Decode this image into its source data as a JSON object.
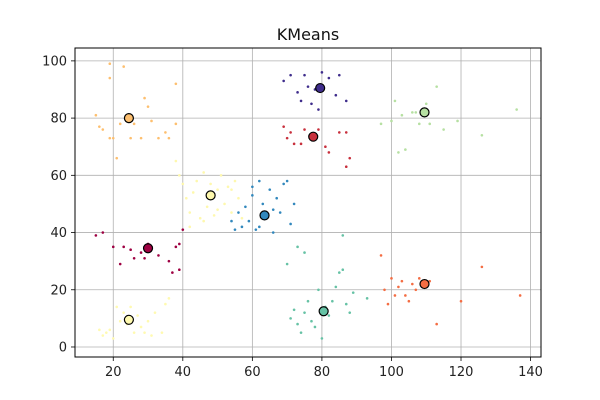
{
  "chart_data": {
    "type": "scatter",
    "title": "KMeans",
    "xlabel": "",
    "ylabel": "",
    "xlim": [
      9,
      143
    ],
    "ylim": [
      -3.5,
      104.5
    ],
    "xticks": [
      20,
      40,
      60,
      80,
      100,
      120,
      140
    ],
    "yticks": [
      0,
      20,
      40,
      60,
      80,
      100
    ],
    "grid": true,
    "legend": "none",
    "clusters": [
      {
        "color": "#fdbf6f",
        "centroid": [
          24.5,
          80
        ],
        "points": [
          [
            15,
            81
          ],
          [
            16,
            77
          ],
          [
            17,
            76
          ],
          [
            19,
            94
          ],
          [
            19,
            99
          ],
          [
            19,
            73
          ],
          [
            20,
            73
          ],
          [
            21,
            66
          ],
          [
            22,
            78
          ],
          [
            23,
            98
          ],
          [
            25,
            73
          ],
          [
            26,
            78
          ],
          [
            28,
            73
          ],
          [
            29,
            87
          ],
          [
            30,
            84
          ],
          [
            31,
            79
          ],
          [
            33,
            73
          ],
          [
            35,
            75
          ],
          [
            36,
            73
          ],
          [
            38,
            92
          ],
          [
            38,
            78
          ]
        ]
      },
      {
        "color": "#3f2d8c",
        "centroid": [
          79.5,
          90.5
        ],
        "points": [
          [
            69,
            93
          ],
          [
            71,
            95
          ],
          [
            73,
            89
          ],
          [
            74,
            86
          ],
          [
            75,
            95
          ],
          [
            76,
            91
          ],
          [
            77,
            85
          ],
          [
            78,
            90
          ],
          [
            79,
            83
          ],
          [
            80,
            96
          ],
          [
            82,
            94
          ],
          [
            84,
            88
          ],
          [
            85,
            95
          ],
          [
            87,
            86
          ]
        ]
      },
      {
        "color": "#c8303d",
        "centroid": [
          77.5,
          73.5
        ],
        "points": [
          [
            69,
            77
          ],
          [
            70,
            73
          ],
          [
            71,
            75
          ],
          [
            72,
            71
          ],
          [
            74,
            71
          ],
          [
            75,
            76
          ],
          [
            77,
            74
          ],
          [
            78,
            73
          ],
          [
            79,
            76
          ],
          [
            81,
            70
          ],
          [
            82,
            68
          ],
          [
            85,
            75
          ],
          [
            87,
            75
          ],
          [
            87,
            63
          ],
          [
            88,
            66
          ]
        ]
      },
      {
        "color": "#b6e0a2",
        "centroid": [
          109.5,
          82
        ],
        "points": [
          [
            97,
            78
          ],
          [
            100,
            79
          ],
          [
            101,
            86
          ],
          [
            102,
            68
          ],
          [
            103,
            81
          ],
          [
            104,
            69
          ],
          [
            106,
            82
          ],
          [
            107,
            82
          ],
          [
            108,
            78
          ],
          [
            110,
            85
          ],
          [
            111,
            78
          ],
          [
            113,
            91
          ],
          [
            115,
            76
          ],
          [
            119,
            79
          ],
          [
            126,
            74
          ],
          [
            136,
            83
          ]
        ]
      },
      {
        "color": "#fef8ad",
        "centroid": [
          48,
          53
        ],
        "points": [
          [
            38,
            65
          ],
          [
            39,
            60
          ],
          [
            40,
            57
          ],
          [
            41,
            52
          ],
          [
            42,
            47
          ],
          [
            43,
            54
          ],
          [
            44,
            58
          ],
          [
            45,
            45
          ],
          [
            46,
            61
          ],
          [
            47,
            49
          ],
          [
            48,
            57
          ],
          [
            49,
            46
          ],
          [
            50,
            55
          ],
          [
            51,
            60
          ],
          [
            52,
            50
          ],
          [
            53,
            56
          ],
          [
            54,
            47
          ],
          [
            55,
            58
          ],
          [
            56,
            52
          ],
          [
            57,
            45
          ],
          [
            42,
            42
          ],
          [
            46,
            44
          ],
          [
            50,
            48
          ],
          [
            54,
            55
          ]
        ]
      },
      {
        "color": "#3288bd",
        "centroid": [
          63.5,
          46
        ],
        "points": [
          [
            54,
            44
          ],
          [
            55,
            41
          ],
          [
            56,
            47
          ],
          [
            57,
            42
          ],
          [
            58,
            49
          ],
          [
            59,
            44
          ],
          [
            60,
            53
          ],
          [
            61,
            41
          ],
          [
            62,
            58
          ],
          [
            63,
            50
          ],
          [
            64,
            45
          ],
          [
            65,
            55
          ],
          [
            66,
            40
          ],
          [
            67,
            52
          ],
          [
            68,
            47
          ],
          [
            69,
            57
          ],
          [
            70,
            58
          ],
          [
            71,
            43
          ],
          [
            72,
            50
          ],
          [
            60,
            56
          ],
          [
            62,
            42
          ],
          [
            66,
            48
          ]
        ]
      },
      {
        "color": "#9e0142",
        "centroid": [
          30,
          34.5
        ],
        "points": [
          [
            15,
            39
          ],
          [
            17,
            40
          ],
          [
            20,
            35
          ],
          [
            22,
            29
          ],
          [
            23,
            35
          ],
          [
            25,
            34
          ],
          [
            26,
            31
          ],
          [
            28,
            33
          ],
          [
            29,
            31
          ],
          [
            30,
            36
          ],
          [
            33,
            32
          ],
          [
            36,
            30
          ],
          [
            37,
            26
          ],
          [
            38,
            35
          ],
          [
            39,
            36
          ],
          [
            39,
            27
          ],
          [
            40,
            41
          ]
        ]
      },
      {
        "color": "#66c2a5",
        "centroid": [
          80.5,
          12.5
        ],
        "points": [
          [
            71,
            10
          ],
          [
            72,
            13
          ],
          [
            73,
            8
          ],
          [
            74,
            5
          ],
          [
            75,
            12
          ],
          [
            76,
            16
          ],
          [
            77,
            9
          ],
          [
            78,
            7
          ],
          [
            79,
            20
          ],
          [
            80,
            3
          ],
          [
            81,
            14
          ],
          [
            82,
            11
          ],
          [
            83,
            16
          ],
          [
            84,
            21
          ],
          [
            85,
            26
          ],
          [
            86,
            27
          ],
          [
            87,
            15
          ],
          [
            88,
            12
          ],
          [
            89,
            19
          ],
          [
            73,
            35
          ],
          [
            70,
            29
          ],
          [
            75,
            33
          ],
          [
            86,
            39
          ],
          [
            93,
            17
          ]
        ]
      },
      {
        "color": "#f46d43",
        "centroid": [
          109.5,
          22
        ],
        "points": [
          [
            97,
            32
          ],
          [
            98,
            20
          ],
          [
            99,
            15
          ],
          [
            100,
            24
          ],
          [
            101,
            18
          ],
          [
            102,
            21
          ],
          [
            103,
            23
          ],
          [
            104,
            18
          ],
          [
            105,
            16
          ],
          [
            106,
            22
          ],
          [
            107,
            20
          ],
          [
            108,
            24
          ],
          [
            111,
            23
          ],
          [
            113,
            8
          ],
          [
            120,
            16
          ],
          [
            126,
            28
          ],
          [
            137,
            18
          ]
        ]
      },
      {
        "color": "#fffab0",
        "centroid": [
          24.5,
          9.5
        ],
        "points": [
          [
            16,
            6
          ],
          [
            17,
            4
          ],
          [
            18,
            5
          ],
          [
            19,
            6
          ],
          [
            20,
            3
          ],
          [
            21,
            14
          ],
          [
            22,
            9
          ],
          [
            23,
            12
          ],
          [
            24,
            8
          ],
          [
            25,
            14
          ],
          [
            26,
            5
          ],
          [
            27,
            11
          ],
          [
            28,
            7
          ],
          [
            29,
            5
          ],
          [
            30,
            9
          ],
          [
            31,
            4
          ],
          [
            32,
            12
          ],
          [
            34,
            5
          ],
          [
            35,
            15
          ],
          [
            36,
            17
          ]
        ]
      }
    ]
  }
}
